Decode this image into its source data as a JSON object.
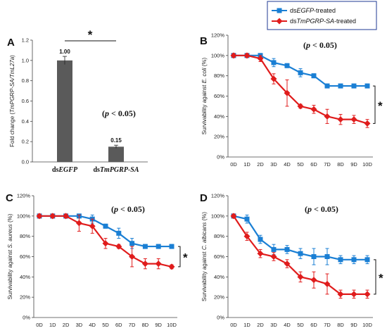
{
  "legend": {
    "items": [
      {
        "prefix": "ds",
        "name": "EGFP",
        "suffix": "-treated",
        "color": "#1a7fd4",
        "marker": "square"
      },
      {
        "prefix": "ds",
        "name": "TmPGRP-SA",
        "suffix": "-treated",
        "color": "#e01c1c",
        "marker": "diamond"
      }
    ]
  },
  "chart_data": [
    {
      "panel": "A",
      "type": "bar",
      "title": "",
      "categories": [
        {
          "prefix": "ds",
          "name": "EGFP"
        },
        {
          "prefix": "ds",
          "name": "TmPGRP-SA"
        }
      ],
      "values": [
        1.0,
        0.15
      ],
      "errors": [
        0.04,
        0.015
      ],
      "value_labels": [
        "1.00",
        "0.15"
      ],
      "bar_color": "#5a5a5a",
      "ylabel": {
        "pre": "Fold change (",
        "italic": "TmPGRP-SA/TmL27a",
        "post": ")"
      },
      "yticks": [
        "0.0",
        "0.2",
        "0.4",
        "0.6",
        "0.8",
        "1.0",
        "1.2"
      ],
      "ylim": [
        0,
        1.2
      ],
      "significance": "*",
      "pvalue": {
        "pre": "(",
        "italic": "p",
        "post": " < 0.05)"
      }
    },
    {
      "panel": "B",
      "type": "line",
      "title": "",
      "categories": [
        "0D",
        "1D",
        "2D",
        "3D",
        "4D",
        "5D",
        "6D",
        "7D",
        "8D",
        "9D",
        "10D"
      ],
      "series": [
        {
          "values": [
            100,
            100,
            100,
            93,
            90,
            83,
            80,
            70,
            70,
            70,
            70
          ],
          "errors": [
            2,
            2,
            2,
            4,
            2,
            4,
            2,
            2,
            2,
            2,
            2
          ]
        },
        {
          "values": [
            100,
            100,
            97,
            77,
            63,
            50,
            47,
            40,
            37,
            37,
            33
          ],
          "errors": [
            2,
            2,
            3,
            5,
            13,
            2,
            4,
            7,
            5,
            4,
            4
          ]
        }
      ],
      "ylabel": {
        "pre": "Survivability against ",
        "italic": "E. coli",
        "post": " (%)"
      },
      "yticks": [
        "0%",
        "20%",
        "40%",
        "60%",
        "80%",
        "100%",
        "120%"
      ],
      "ylim": [
        0,
        120
      ],
      "significance": "*",
      "pvalue": {
        "pre": "(",
        "italic": "p",
        "post": " < 0.05)"
      }
    },
    {
      "panel": "C",
      "type": "line",
      "title": "",
      "categories": [
        "0D",
        "1D",
        "2D",
        "3D",
        "4D",
        "5D",
        "6D",
        "7D",
        "8D",
        "9D",
        "10D"
      ],
      "series": [
        {
          "values": [
            100,
            100,
            100,
            100,
            97,
            90,
            83,
            73,
            70,
            70,
            70
          ],
          "errors": [
            2,
            2,
            2,
            2,
            4,
            2,
            5,
            5,
            2,
            2,
            2
          ]
        },
        {
          "values": [
            100,
            100,
            100,
            93,
            90,
            73,
            70,
            60,
            53,
            53,
            50
          ],
          "errors": [
            2,
            2,
            2,
            8,
            7,
            5,
            2,
            10,
            5,
            5,
            2
          ]
        }
      ],
      "ylabel": {
        "pre": "Survivability against ",
        "italic": "S. aureus",
        "post": " (%)"
      },
      "yticks": [
        "0%",
        "20%",
        "40%",
        "60%",
        "80%",
        "100%",
        "120%"
      ],
      "ylim": [
        0,
        120
      ],
      "significance": "*",
      "pvalue": {
        "pre": "(",
        "italic": "p",
        "post": " < 0.05)"
      }
    },
    {
      "panel": "D",
      "type": "line",
      "title": "",
      "categories": [
        "0D",
        "1D",
        "2D",
        "3D",
        "4D",
        "5D",
        "6D",
        "7D",
        "8D",
        "9D",
        "10D"
      ],
      "series": [
        {
          "values": [
            100,
            97,
            77,
            67,
            67,
            63,
            60,
            60,
            57,
            57,
            57
          ],
          "errors": [
            2,
            4,
            4,
            5,
            4,
            5,
            8,
            8,
            4,
            4,
            4
          ]
        },
        {
          "values": [
            100,
            80,
            63,
            60,
            53,
            40,
            37,
            33,
            23,
            23,
            23
          ],
          "errors": [
            2,
            4,
            4,
            4,
            4,
            5,
            8,
            10,
            4,
            4,
            4
          ]
        }
      ],
      "ylabel": {
        "pre": "Survivability against ",
        "italic": "C. albicans",
        "post": " (%)"
      },
      "yticks": [
        "0%",
        "20%",
        "40%",
        "60%",
        "80%",
        "100%",
        "120%"
      ],
      "ylim": [
        0,
        120
      ],
      "significance": "*",
      "pvalue": {
        "pre": "(",
        "italic": "p",
        "post": " < 0.05)"
      }
    }
  ]
}
